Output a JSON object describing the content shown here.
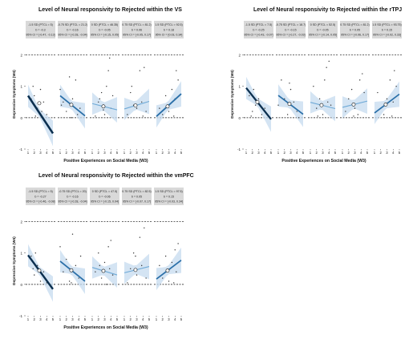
{
  "chart_data": [
    {
      "type": "line",
      "title": "Level of Neural responsivity to Rejected within the VS",
      "xlabel": "Positive Experiences on Social Media (W3)",
      "ylabel": "Depressive Symptoms (W4)",
      "xlim": [
        1,
        5
      ],
      "ylim": [
        -1,
        2.5
      ],
      "x_ticks": [
        "1",
        "2",
        "3",
        "4",
        "5",
        "1",
        "2",
        "3",
        "4",
        "5",
        "1",
        "2",
        "3",
        "4",
        "5",
        "1",
        "2",
        "3",
        "4",
        "5",
        "1",
        "2",
        "3",
        "4",
        "5"
      ],
      "y_ticks": [
        "-1",
        "0",
        "1",
        "2"
      ],
      "reference_lines_y": [
        0,
        2
      ],
      "strips": [
        [
          "-1.5 SD (PTCL = 5)",
          "b = -0.3",
          "95% CI = [-0.47, -0.13]"
        ],
        [
          "-0.75 SD (PTCL = 21.2)",
          "b = -0.16",
          "95% CI = [-0.28, -0.04]"
        ],
        [
          "0 SD (PTCL = 46.35)",
          "b = -0.05",
          "95% CI = [-0.15, 0.05]"
        ],
        [
          "0.75 SD (PTCL = 81.2)",
          "b = 0.06",
          "95% CI = [-0.05, 0.17]"
        ],
        [
          "1.5 SD (PTCL = 92.5)",
          "b = 0.18",
          "95% CI = [0.03, 0.34]"
        ]
      ],
      "series": [
        {
          "slope": -0.3,
          "intercept": 1.0,
          "mean_x": 2.8,
          "mean_y": 0.46
        },
        {
          "slope": -0.16,
          "intercept": 0.86,
          "mean_x": 2.8,
          "mean_y": 0.41
        },
        {
          "slope": -0.05,
          "intercept": 0.5,
          "mean_x": 2.8,
          "mean_y": 0.36
        },
        {
          "slope": 0.06,
          "intercept": 0.22,
          "mean_x": 2.8,
          "mean_y": 0.39
        },
        {
          "slope": 0.18,
          "intercept": -0.14,
          "mean_x": 2.8,
          "mean_y": 0.36
        }
      ],
      "points": [
        [
          [
            1.5,
            0.6
          ],
          [
            2,
            0.7
          ],
          [
            2.5,
            0.3
          ],
          [
            3,
            0.9
          ],
          [
            3.2,
            0.2
          ],
          [
            3.5,
            0.5
          ],
          [
            4,
            0.1
          ],
          [
            2.2,
            0.05
          ],
          [
            1.8,
            1.0
          ]
        ],
        [
          [
            1,
            0.9
          ],
          [
            1.5,
            0.5
          ],
          [
            2,
            0.2
          ],
          [
            2.5,
            1.3
          ],
          [
            3,
            0.6
          ],
          [
            3.5,
            1.2
          ],
          [
            3.8,
            0.1
          ],
          [
            4.2,
            0.3
          ],
          [
            2.8,
            0.0
          ],
          [
            1.2,
            0.4
          ]
        ],
        [
          [
            1.5,
            0.05
          ],
          [
            2,
            0.5
          ],
          [
            2.5,
            0.8
          ],
          [
            3,
            0.1
          ],
          [
            3.3,
            1.0
          ],
          [
            3.6,
            1.5
          ],
          [
            3.8,
            1.9
          ],
          [
            4,
            0.3
          ],
          [
            4.3,
            0.7
          ],
          [
            2.2,
            0.6
          ],
          [
            2.8,
            0.25
          ]
        ],
        [
          [
            1.5,
            0.1
          ],
          [
            2,
            0.8
          ],
          [
            2.5,
            0.4
          ],
          [
            3,
            0.3
          ],
          [
            3.5,
            1.5
          ],
          [
            3.8,
            0.5
          ],
          [
            4.2,
            1.6
          ],
          [
            4.5,
            0.2
          ],
          [
            2.2,
            1.0
          ],
          [
            4,
            0.05
          ]
        ],
        [
          [
            1.5,
            0.3
          ],
          [
            2,
            0.1
          ],
          [
            2.5,
            0.7
          ],
          [
            3,
            0.2
          ],
          [
            3.5,
            0.9
          ],
          [
            4,
            0.6
          ],
          [
            4.2,
            1.5
          ],
          [
            4.5,
            1.2
          ],
          [
            3.8,
            0.05
          ]
        ]
      ]
    },
    {
      "type": "line",
      "title": "Level of Neural responsivity to Rejected within the rTPJ",
      "xlabel": "Positive Experiences on Social Media (W3)",
      "ylabel": "Depressive Symptoms (W4)",
      "xlim": [
        1,
        5
      ],
      "ylim": [
        -1,
        2.5
      ],
      "x_ticks": [
        "1",
        "2",
        "3",
        "4",
        "5",
        "1",
        "2",
        "3",
        "4",
        "5",
        "1",
        "2",
        "3",
        "4",
        "5",
        "1",
        "2",
        "3",
        "4",
        "5",
        "1",
        "2",
        "3",
        "4",
        "5"
      ],
      "y_ticks": [
        "-1",
        "0",
        "1",
        "2"
      ],
      "reference_lines_y": [
        0,
        2
      ],
      "strips": [
        [
          "-1.5 SD (PTCL = 7.5)",
          "b = -0.25",
          "95% CI = [-0.43, -0.07]"
        ],
        [
          "-0.75 SD (PTCL = 18.7)",
          "b = -0.15",
          "95% CI = [-0.27, -0.03]"
        ],
        [
          "0 SD (PTCL = 52.5)",
          "b = -0.05",
          "95% CI = [-0.14, 0.05]"
        ],
        [
          "0.75 SD (PTCL = 81.2)",
          "b = 0.05",
          "95% CI = [-0.06, 0.17]"
        ],
        [
          "1.5 SD (PTCL = 93.75)",
          "b = 0.15",
          "95% CI = [-0.02, 0.33]"
        ]
      ],
      "series": [
        {
          "slope": -0.25,
          "intercept": 1.2,
          "mean_x": 2.8,
          "mean_y": 0.5
        },
        {
          "slope": -0.15,
          "intercept": 0.86,
          "mean_x": 2.8,
          "mean_y": 0.44
        },
        {
          "slope": -0.05,
          "intercept": 0.54,
          "mean_x": 2.8,
          "mean_y": 0.4
        },
        {
          "slope": 0.05,
          "intercept": 0.28,
          "mean_x": 2.8,
          "mean_y": 0.42
        },
        {
          "slope": 0.15,
          "intercept": 0.0,
          "mean_x": 2.8,
          "mean_y": 0.42
        }
      ],
      "points": [
        [
          [
            1.5,
            0.7
          ],
          [
            2,
            0.2
          ],
          [
            2.5,
            0.4
          ],
          [
            3,
            0.6
          ],
          [
            3.5,
            0.1
          ],
          [
            4,
            0.3
          ],
          [
            2.2,
            0.9
          ],
          [
            1.8,
            0.05
          ]
        ],
        [
          [
            1,
            0.4
          ],
          [
            1.5,
            1.2
          ],
          [
            2,
            0.6
          ],
          [
            2.5,
            0.1
          ],
          [
            3,
            0.9
          ],
          [
            3.5,
            0.5
          ],
          [
            4,
            0.2
          ],
          [
            4.3,
            0.0
          ],
          [
            2.8,
            1.1
          ]
        ],
        [
          [
            1.5,
            1.0
          ],
          [
            2,
            0.3
          ],
          [
            2.5,
            0.6
          ],
          [
            3,
            0.1
          ],
          [
            3.3,
            1.2
          ],
          [
            3.6,
            1.6
          ],
          [
            3.8,
            0.5
          ],
          [
            4,
            1.8
          ],
          [
            4.3,
            0.4
          ],
          [
            2.2,
            0.05
          ]
        ],
        [
          [
            1.5,
            0.2
          ],
          [
            2,
            0.6
          ],
          [
            2.5,
            0.9
          ],
          [
            3,
            0.3
          ],
          [
            3.5,
            0.1
          ],
          [
            3.8,
            1.2
          ],
          [
            4.2,
            1.4
          ],
          [
            4.5,
            0.8
          ],
          [
            2.8,
            0.05
          ]
        ],
        [
          [
            1.5,
            0.8
          ],
          [
            2,
            0.3
          ],
          [
            2.5,
            0.1
          ],
          [
            3,
            0.6
          ],
          [
            3.5,
            1.2
          ],
          [
            4,
            0.5
          ],
          [
            4.2,
            1.5
          ],
          [
            4.5,
            1.0
          ],
          [
            3.8,
            0.05
          ]
        ]
      ]
    },
    {
      "type": "line",
      "title": "Level of Neural responsivity to Rejected within the vmPFC",
      "xlabel": "Positive Experiences on Social Media (W3)",
      "ylabel": "Depressive Symptoms (W4)",
      "xlim": [
        1,
        5
      ],
      "ylim": [
        -1,
        2.5
      ],
      "x_ticks": [
        "1",
        "2",
        "3",
        "4",
        "5",
        "1",
        "2",
        "3",
        "4",
        "5",
        "1",
        "2",
        "3",
        "4",
        "5",
        "1",
        "2",
        "3",
        "4",
        "5",
        "1",
        "2",
        "3",
        "4",
        "5"
      ],
      "y_ticks": [
        "-1",
        "0",
        "1",
        "2"
      ],
      "reference_lines_y": [
        0,
        2
      ],
      "strips": [
        [
          "-1.5 SD (PTCL = 5)",
          "b = -0.27",
          "95% CI = [-0.46, -0.08]"
        ],
        [
          "-0.75 SD (PTCL = 20)",
          "b = -0.16",
          "95% CI = [-0.28, -0.04]"
        ],
        [
          "0 SD (PTCL = 47.5)",
          "b = -0.06",
          "95% CI = [-0.15, 0.04]"
        ],
        [
          "0.75 SD (PTCL = 82.5)",
          "b = 0.05",
          "95% CI = [-0.07, 0.17]"
        ],
        [
          "1.5 SD (PTCL = 97.5)",
          "b = 0.15",
          "95% CI = [-0.03, 0.34]"
        ]
      ],
      "series": [
        {
          "slope": -0.27,
          "intercept": 1.2,
          "mean_x": 2.8,
          "mean_y": 0.44
        },
        {
          "slope": -0.16,
          "intercept": 0.9,
          "mean_x": 2.8,
          "mean_y": 0.45
        },
        {
          "slope": -0.06,
          "intercept": 0.6,
          "mean_x": 2.8,
          "mean_y": 0.43
        },
        {
          "slope": 0.05,
          "intercept": 0.32,
          "mean_x": 2.8,
          "mean_y": 0.46
        },
        {
          "slope": 0.15,
          "intercept": 0.02,
          "mean_x": 2.8,
          "mean_y": 0.44
        }
      ],
      "points": [
        [
          [
            1.5,
            0.9
          ],
          [
            2,
            0.3
          ],
          [
            2.5,
            0.6
          ],
          [
            3,
            0.1
          ],
          [
            3.5,
            0.4
          ],
          [
            4,
            0.05
          ],
          [
            2.2,
            1.0
          ],
          [
            1.8,
            0.5
          ]
        ],
        [
          [
            1,
            1.2
          ],
          [
            1.5,
            0.4
          ],
          [
            2,
            0.8
          ],
          [
            2.5,
            0.1
          ],
          [
            3,
            1.6
          ],
          [
            3.5,
            0.6
          ],
          [
            4,
            0.2
          ],
          [
            4.3,
            0.9
          ],
          [
            2.8,
            0.05
          ]
        ],
        [
          [
            1.5,
            0.4
          ],
          [
            2,
            1.0
          ],
          [
            2.5,
            0.2
          ],
          [
            3,
            0.7
          ],
          [
            3.3,
            0.0
          ],
          [
            3.6,
            1.2
          ],
          [
            3.8,
            0.5
          ],
          [
            4,
            1.4
          ],
          [
            4.3,
            0.3
          ],
          [
            2.2,
            0.6
          ]
        ],
        [
          [
            1.5,
            0.05
          ],
          [
            2,
            0.5
          ],
          [
            2.5,
            1.0
          ],
          [
            3,
            0.3
          ],
          [
            3.5,
            1.5
          ],
          [
            3.8,
            0.6
          ],
          [
            4.2,
            1.8
          ],
          [
            4.5,
            0.2
          ],
          [
            2.8,
            0.9
          ]
        ],
        [
          [
            1.5,
            0.6
          ],
          [
            2,
            0.2
          ],
          [
            2.5,
            0.9
          ],
          [
            3,
            0.1
          ],
          [
            3.5,
            0.7
          ],
          [
            4,
            1.1
          ],
          [
            4.2,
            0.4
          ],
          [
            4.5,
            1.3
          ],
          [
            3.8,
            0.05
          ]
        ]
      ]
    }
  ]
}
